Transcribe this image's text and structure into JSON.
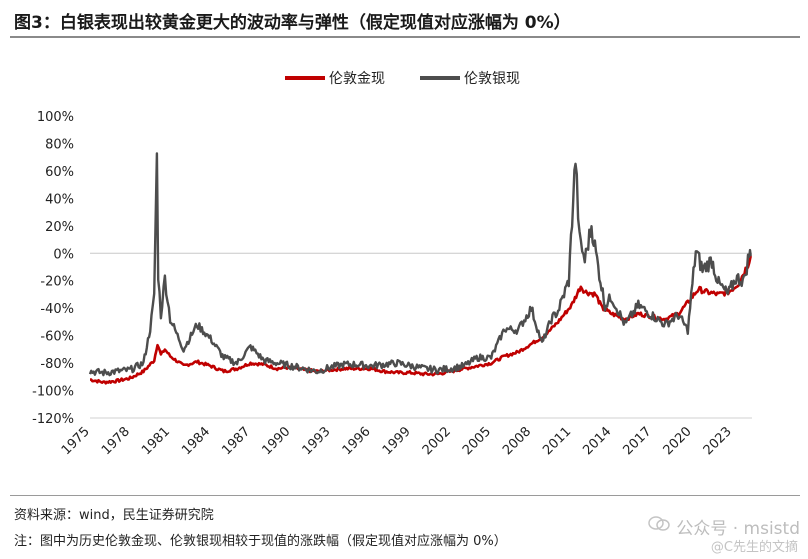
{
  "title": "图3：白银表现出较黄金更大的波动率与弹性（假定现值对应涨幅为 0%）",
  "source": "资料来源：wind，民生证券研究院",
  "note": "注：图中为历史伦敦金现、伦敦银现相较于现值的涨跌幅（假定现值对应涨幅为 0%）",
  "watermark": {
    "line1": "公众号 · msistd",
    "line2": "@C先生的文摘"
  },
  "chart_data": {
    "type": "line",
    "title": "图3：白银表现出较黄金更大的波动率与弹性（假定现值对应涨幅为 0%）",
    "xlabel": "",
    "ylabel": "",
    "xlim": [
      1975,
      2024.5
    ],
    "ylim": [
      -120,
      100
    ],
    "yticks": [
      -120,
      -100,
      -80,
      -60,
      -40,
      -20,
      0,
      20,
      40,
      60,
      80,
      100
    ],
    "ytick_labels": [
      "-120%",
      "-100%",
      "-80%",
      "-60%",
      "-40%",
      "-20%",
      "0%",
      "20%",
      "40%",
      "60%",
      "80%",
      "100%"
    ],
    "xticks": [
      1975,
      1978,
      1981,
      1984,
      1987,
      1990,
      1993,
      1996,
      1999,
      2002,
      2005,
      2008,
      2011,
      2014,
      2017,
      2020,
      2023
    ],
    "xtick_labels": [
      "1975",
      "1978",
      "1981",
      "1984",
      "1987",
      "1990",
      "1993",
      "1996",
      "1999",
      "2002",
      "2005",
      "2008",
      "2011",
      "2014",
      "2017",
      "2020",
      "2023"
    ],
    "legend_position": "top-center",
    "series": [
      {
        "name": "伦敦金现",
        "color": "#c00000",
        "points": [
          [
            1975.0,
            -92
          ],
          [
            1976.0,
            -94
          ],
          [
            1977.0,
            -93
          ],
          [
            1978.0,
            -91
          ],
          [
            1979.0,
            -86
          ],
          [
            1979.8,
            -78
          ],
          [
            1980.05,
            -66
          ],
          [
            1980.3,
            -74
          ],
          [
            1980.6,
            -70
          ],
          [
            1981.0,
            -75
          ],
          [
            1982.0,
            -82
          ],
          [
            1983.0,
            -79
          ],
          [
            1984.0,
            -82
          ],
          [
            1985.0,
            -86
          ],
          [
            1986.0,
            -84
          ],
          [
            1987.0,
            -80
          ],
          [
            1988.0,
            -81
          ],
          [
            1989.0,
            -84
          ],
          [
            1990.0,
            -83
          ],
          [
            1991.0,
            -85
          ],
          [
            1992.0,
            -86
          ],
          [
            1993.0,
            -85
          ],
          [
            1994.0,
            -84
          ],
          [
            1995.0,
            -84
          ],
          [
            1996.0,
            -84
          ],
          [
            1997.0,
            -86
          ],
          [
            1998.0,
            -87
          ],
          [
            1999.0,
            -87
          ],
          [
            2000.0,
            -88
          ],
          [
            2001.0,
            -88
          ],
          [
            2002.0,
            -86
          ],
          [
            2003.0,
            -84
          ],
          [
            2004.0,
            -82
          ],
          [
            2005.0,
            -80
          ],
          [
            2006.0,
            -75
          ],
          [
            2007.0,
            -72
          ],
          [
            2008.0,
            -66
          ],
          [
            2009.0,
            -60
          ],
          [
            2010.0,
            -50
          ],
          [
            2011.0,
            -38
          ],
          [
            2011.7,
            -24
          ],
          [
            2012.0,
            -28
          ],
          [
            2012.8,
            -30
          ],
          [
            2013.3,
            -40
          ],
          [
            2014.0,
            -44
          ],
          [
            2015.0,
            -48
          ],
          [
            2016.0,
            -44
          ],
          [
            2017.0,
            -46
          ],
          [
            2018.0,
            -48
          ],
          [
            2019.0,
            -44
          ],
          [
            2019.7,
            -36
          ],
          [
            2020.5,
            -26
          ],
          [
            2021.0,
            -28
          ],
          [
            2022.0,
            -30
          ],
          [
            2022.8,
            -28
          ],
          [
            2023.5,
            -22
          ],
          [
            2024.2,
            -8
          ],
          [
            2024.4,
            -2
          ]
        ]
      },
      {
        "name": "伦敦银现",
        "color": "#4d4d4d",
        "points": [
          [
            1975.0,
            -86
          ],
          [
            1976.0,
            -87
          ],
          [
            1977.0,
            -86
          ],
          [
            1978.0,
            -85
          ],
          [
            1979.0,
            -80
          ],
          [
            1979.5,
            -55
          ],
          [
            1979.8,
            -32
          ],
          [
            1980.0,
            72
          ],
          [
            1980.1,
            -15
          ],
          [
            1980.3,
            -45
          ],
          [
            1980.6,
            -18
          ],
          [
            1981.0,
            -48
          ],
          [
            1982.0,
            -70
          ],
          [
            1983.0,
            -52
          ],
          [
            1984.0,
            -62
          ],
          [
            1985.0,
            -76
          ],
          [
            1986.0,
            -80
          ],
          [
            1987.0,
            -68
          ],
          [
            1988.0,
            -78
          ],
          [
            1989.0,
            -80
          ],
          [
            1990.0,
            -82
          ],
          [
            1991.0,
            -84
          ],
          [
            1992.0,
            -86
          ],
          [
            1993.0,
            -83
          ],
          [
            1994.0,
            -81
          ],
          [
            1995.0,
            -81
          ],
          [
            1996.0,
            -82
          ],
          [
            1997.0,
            -81
          ],
          [
            1998.0,
            -80
          ],
          [
            1999.0,
            -82
          ],
          [
            2000.0,
            -84
          ],
          [
            2001.0,
            -85
          ],
          [
            2002.0,
            -84
          ],
          [
            2003.0,
            -82
          ],
          [
            2004.0,
            -76
          ],
          [
            2005.0,
            -76
          ],
          [
            2006.0,
            -55
          ],
          [
            2007.0,
            -56
          ],
          [
            2008.0,
            -40
          ],
          [
            2008.8,
            -66
          ],
          [
            2009.5,
            -48
          ],
          [
            2010.0,
            -42
          ],
          [
            2010.8,
            -20
          ],
          [
            2011.3,
            70
          ],
          [
            2011.6,
            10
          ],
          [
            2012.0,
            -5
          ],
          [
            2012.5,
            20
          ],
          [
            2013.0,
            -10
          ],
          [
            2013.5,
            -38
          ],
          [
            2014.0,
            -32
          ],
          [
            2015.0,
            -52
          ],
          [
            2016.0,
            -38
          ],
          [
            2017.0,
            -45
          ],
          [
            2018.0,
            -52
          ],
          [
            2019.0,
            -45
          ],
          [
            2019.7,
            -56
          ],
          [
            2020.3,
            2
          ],
          [
            2020.8,
            -12
          ],
          [
            2021.5,
            -5
          ],
          [
            2022.0,
            -22
          ],
          [
            2022.7,
            -30
          ],
          [
            2023.3,
            -18
          ],
          [
            2023.9,
            -20
          ],
          [
            2024.3,
            0
          ],
          [
            2024.4,
            -2
          ]
        ]
      }
    ]
  }
}
